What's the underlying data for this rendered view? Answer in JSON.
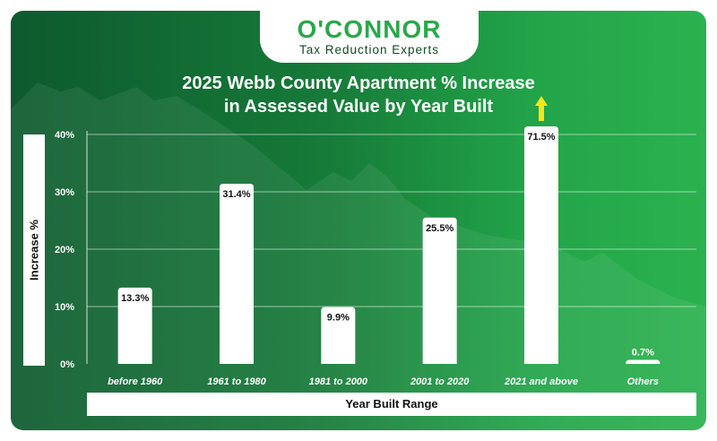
{
  "brand": {
    "name": "O'CONNOR",
    "tagline": "Tax Reduction Experts"
  },
  "chart_data": {
    "type": "bar",
    "title": "2025 Webb County Apartment % Increase in Assessed Value by Year Built",
    "title_lines": [
      "2025 Webb County Apartment % Increase",
      "in Assessed Value by Year Built"
    ],
    "xlabel": "Year Built Range",
    "ylabel": "Increase %",
    "categories": [
      "before 1960",
      "1961 to 1980",
      "1981 to 2000",
      "2001 to 2020",
      "2021 and above",
      "Others"
    ],
    "values": [
      13.3,
      31.4,
      9.9,
      25.5,
      71.5,
      0.7
    ],
    "value_labels": [
      "13.3%",
      "31.4%",
      "9.9%",
      "25.5%",
      "71.5%",
      "0.7%"
    ],
    "yticks": [
      "0%",
      "10%",
      "20%",
      "30%",
      "40%"
    ],
    "ylim": [
      0,
      40
    ],
    "grid": true,
    "legend": "none",
    "annotations": [
      {
        "category": "2021 and above",
        "type": "up-arrow",
        "meaning": "bar exceeds axis maximum"
      }
    ],
    "colors": {
      "bars": "#ffffff",
      "background_start": "#0d5a2e",
      "background_end": "#2bb24f",
      "arrow": "#f5e61a"
    }
  }
}
